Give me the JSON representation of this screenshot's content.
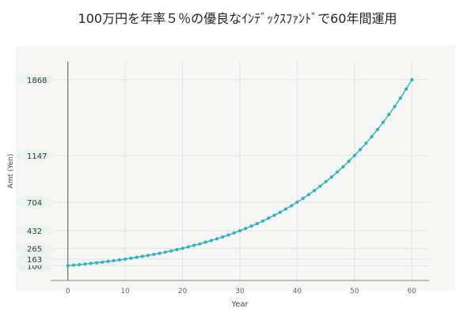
{
  "chart_data": {
    "type": "line",
    "title": "100万円を年率５％の優良なｲﾝﾃﾞｯｸｽﾌｧﾝﾄﾞで60年間運用",
    "xlabel": "Year",
    "ylabel": "Amt (Yen)",
    "x": [
      0,
      1,
      2,
      3,
      4,
      5,
      6,
      7,
      8,
      9,
      10,
      11,
      12,
      13,
      14,
      15,
      16,
      17,
      18,
      19,
      20,
      21,
      22,
      23,
      24,
      25,
      26,
      27,
      28,
      29,
      30,
      31,
      32,
      33,
      34,
      35,
      36,
      37,
      38,
      39,
      40,
      41,
      42,
      43,
      44,
      45,
      46,
      47,
      48,
      49,
      50,
      51,
      52,
      53,
      54,
      55,
      56,
      57,
      58,
      59,
      60
    ],
    "series": [
      {
        "values": [
          100,
          105,
          110,
          116,
          122,
          128,
          134,
          141,
          148,
          155,
          163,
          171,
          180,
          189,
          198,
          208,
          218,
          229,
          241,
          253,
          265,
          279,
          293,
          307,
          323,
          339,
          356,
          373,
          392,
          412,
          432,
          454,
          476,
          500,
          525,
          552,
          579,
          608,
          639,
          670,
          704,
          739,
          776,
          815,
          856,
          899,
          943,
          991,
          1040,
          1092,
          1147,
          1204,
          1264,
          1327,
          1394,
          1464,
          1537,
          1614,
          1694,
          1779,
          1868
        ]
      }
    ],
    "xlim": [
      -3,
      63
    ],
    "ylim": [
      -40,
      2040
    ],
    "xticks": [
      0,
      10,
      20,
      30,
      40,
      50,
      60
    ],
    "yticks": [
      100,
      163,
      265,
      432,
      704,
      1147,
      1868
    ],
    "grid": true,
    "colors": {
      "line": "#2bb3c0",
      "grid": "#e2e2e2",
      "axis": "#888888",
      "tick_label_bg": "#eaf3ee"
    }
  }
}
